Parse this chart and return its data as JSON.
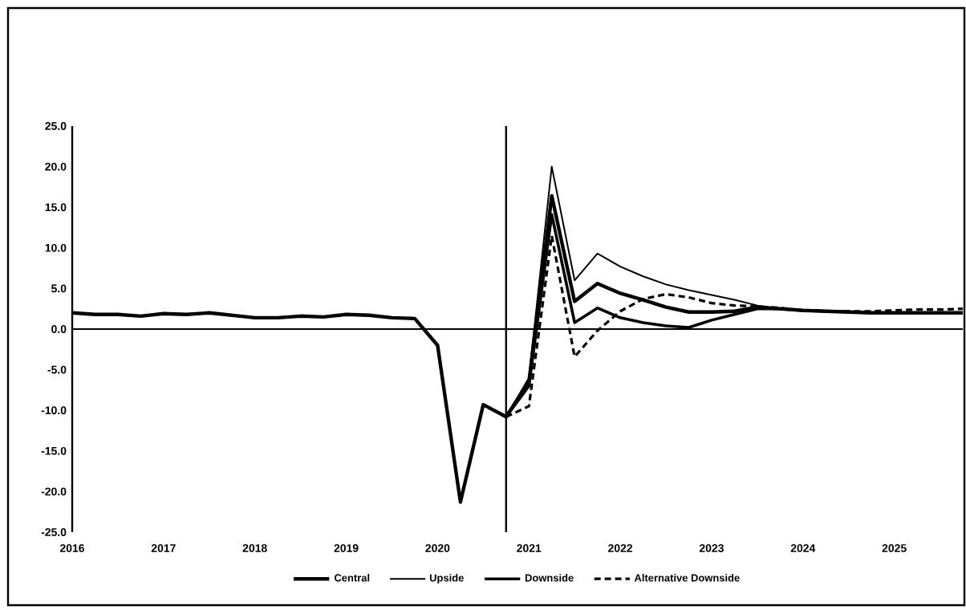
{
  "chart_data": {
    "type": "line",
    "x": [
      2016,
      2016.25,
      2016.5,
      2016.75,
      2017,
      2017.25,
      2017.5,
      2017.75,
      2018,
      2018.25,
      2018.5,
      2018.75,
      2019,
      2019.25,
      2019.5,
      2019.75,
      2020,
      2020.25,
      2020.5,
      2020.75,
      2021,
      2021.25,
      2021.5,
      2021.75,
      2022,
      2022.25,
      2022.5,
      2022.75,
      2023,
      2023.25,
      2023.5,
      2023.75,
      2024,
      2024.25,
      2024.5,
      2024.75,
      2025,
      2025.25,
      2025.5,
      2025.75
    ],
    "series": [
      {
        "name": "Central",
        "color": "#000000",
        "line_style": "solid",
        "values": [
          2.0,
          1.8,
          1.8,
          1.6,
          1.9,
          1.8,
          2.0,
          1.7,
          1.4,
          1.4,
          1.6,
          1.5,
          1.8,
          1.7,
          1.4,
          1.3,
          -2.0,
          -21.3,
          -9.3,
          -10.8,
          -6.5,
          16.4,
          3.4,
          5.6,
          4.4,
          3.6,
          2.7,
          2.1,
          2.1,
          2.2,
          2.7,
          2.5,
          2.3,
          2.2,
          2.1,
          2.0,
          2.0,
          2.0,
          2.0,
          2.0
        ]
      },
      {
        "name": "Upside",
        "color": "#000000",
        "line_style": "solid",
        "values": [
          null,
          null,
          null,
          null,
          null,
          null,
          null,
          null,
          null,
          null,
          null,
          null,
          null,
          null,
          null,
          null,
          null,
          null,
          null,
          -10.8,
          -6.0,
          20.0,
          6.0,
          9.3,
          7.7,
          6.5,
          5.5,
          4.8,
          4.2,
          3.6,
          2.9,
          2.5,
          2.3,
          2.2,
          2.1,
          2.0,
          2.0,
          2.0,
          2.0,
          2.0
        ]
      },
      {
        "name": "Downside",
        "color": "#000000",
        "line_style": "solid",
        "values": [
          null,
          null,
          null,
          null,
          null,
          null,
          null,
          null,
          null,
          null,
          null,
          null,
          null,
          null,
          null,
          null,
          null,
          null,
          null,
          -10.8,
          -7.0,
          14.1,
          0.8,
          2.6,
          1.4,
          0.8,
          0.4,
          0.2,
          1.1,
          1.8,
          2.5,
          2.5,
          2.3,
          2.2,
          2.1,
          2.0,
          2.0,
          2.0,
          2.0,
          2.0
        ]
      },
      {
        "name": "Alternative Downside",
        "color": "#000000",
        "line_style": "dashed",
        "values": [
          null,
          null,
          null,
          null,
          null,
          null,
          null,
          null,
          null,
          null,
          null,
          null,
          null,
          null,
          null,
          null,
          null,
          null,
          null,
          -10.8,
          -9.5,
          11.5,
          -3.4,
          -0.2,
          2.2,
          3.7,
          4.3,
          3.9,
          3.2,
          2.9,
          2.8,
          2.6,
          2.3,
          2.2,
          2.2,
          2.2,
          2.3,
          2.4,
          2.4,
          2.5
        ]
      }
    ],
    "xlim": [
      2016,
      2025.75
    ],
    "xticks": [
      2016,
      2017,
      2018,
      2019,
      2020,
      2021,
      2022,
      2023,
      2024,
      2025
    ],
    "ylim": [
      -25,
      25
    ],
    "yticks": [
      {
        "value": -25,
        "label": "-25.0"
      },
      {
        "value": -20,
        "label": "-20.0"
      },
      {
        "value": -15,
        "label": "-15.0"
      },
      {
        "value": -10,
        "label": "-10.0"
      },
      {
        "value": -5,
        "label": "-5.0"
      },
      {
        "value": 0,
        "label": "0.0"
      },
      {
        "value": 5,
        "label": "5.0"
      },
      {
        "value": 10,
        "label": "10.0"
      },
      {
        "value": 15,
        "label": "15.0"
      },
      {
        "value": 20,
        "label": "20.0"
      },
      {
        "value": 25,
        "label": "25.0"
      }
    ],
    "ref_lines": [
      {
        "axis": "y",
        "value": 0,
        "color": "#000000"
      },
      {
        "axis": "x",
        "value": 2020.75,
        "color": "#000000"
      }
    ],
    "grid": false,
    "marker": "none",
    "legend": "bottom"
  }
}
